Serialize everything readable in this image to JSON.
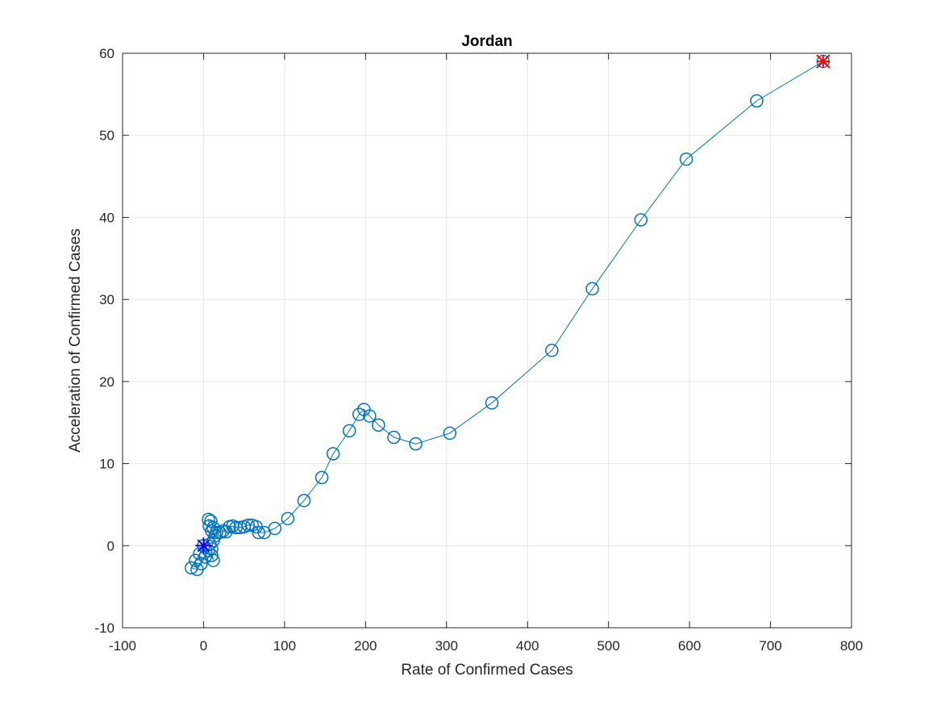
{
  "chart_data": {
    "type": "line",
    "title": "Jordan",
    "xlabel": "Rate of Confirmed Cases",
    "ylabel": "Acceleration of Confirmed Cases",
    "xlim": [
      -100,
      800
    ],
    "ylim": [
      -10,
      60
    ],
    "xticks": [
      -100,
      0,
      100,
      200,
      300,
      400,
      500,
      600,
      700,
      800
    ],
    "yticks": [
      -10,
      0,
      10,
      20,
      30,
      40,
      50,
      60
    ],
    "xtick_labels": [
      "-100",
      "0",
      "100",
      "200",
      "300",
      "400",
      "500",
      "600",
      "700",
      "800"
    ],
    "ytick_labels": [
      "-10",
      "0",
      "10",
      "20",
      "30",
      "40",
      "50",
      "60"
    ],
    "grid": true,
    "colors": {
      "series": "#0072BD",
      "start": "#0000FF",
      "end": "#FF0000",
      "axis": "#262626",
      "grid": "#e6e6e6"
    },
    "series": [
      {
        "marker": "circle",
        "points": [
          [
            0,
            0
          ],
          [
            -5,
            -1
          ],
          [
            -10,
            -1.8
          ],
          [
            -15,
            -2.7
          ],
          [
            -8,
            -2.9
          ],
          [
            -3,
            -2.2
          ],
          [
            2,
            -1.4
          ],
          [
            6,
            -0.6
          ],
          [
            8,
            0.2
          ],
          [
            10,
            -1.2
          ],
          [
            12,
            -1.8
          ],
          [
            10,
            -0.4
          ],
          [
            12,
            0.6
          ],
          [
            14,
            1.2
          ],
          [
            10,
            1.8
          ],
          [
            7,
            2.4
          ],
          [
            6,
            3.2
          ],
          [
            9,
            3
          ],
          [
            12,
            2.2
          ],
          [
            16,
            1.6
          ],
          [
            20,
            1.6
          ],
          [
            24,
            1.8
          ],
          [
            28,
            1.7
          ],
          [
            32,
            2.3
          ],
          [
            36,
            2.4
          ],
          [
            40,
            2.2
          ],
          [
            45,
            2.2
          ],
          [
            50,
            2.3
          ],
          [
            55,
            2.5
          ],
          [
            60,
            2.5
          ],
          [
            65,
            2.3
          ],
          [
            68,
            1.6
          ],
          [
            75,
            1.6
          ],
          [
            88,
            2.1
          ],
          [
            104,
            3.3
          ],
          [
            124,
            5.5
          ],
          [
            146,
            8.3
          ],
          [
            160,
            11.2
          ],
          [
            180,
            14
          ],
          [
            192,
            16
          ],
          [
            198,
            16.6
          ],
          [
            205,
            15.8
          ],
          [
            216,
            14.7
          ],
          [
            235,
            13.2
          ],
          [
            262,
            12.4
          ],
          [
            304,
            13.7
          ],
          [
            356,
            17.4
          ],
          [
            430,
            23.8
          ],
          [
            480,
            31.3
          ],
          [
            540,
            39.7
          ],
          [
            596,
            47.1
          ],
          [
            683,
            54.2
          ],
          [
            765,
            59
          ]
        ]
      }
    ],
    "start_marker": {
      "x": 0,
      "y": 0,
      "symbol": "asterisk"
    },
    "end_marker": {
      "x": 765,
      "y": 59,
      "symbol": "asterisk-x"
    }
  }
}
